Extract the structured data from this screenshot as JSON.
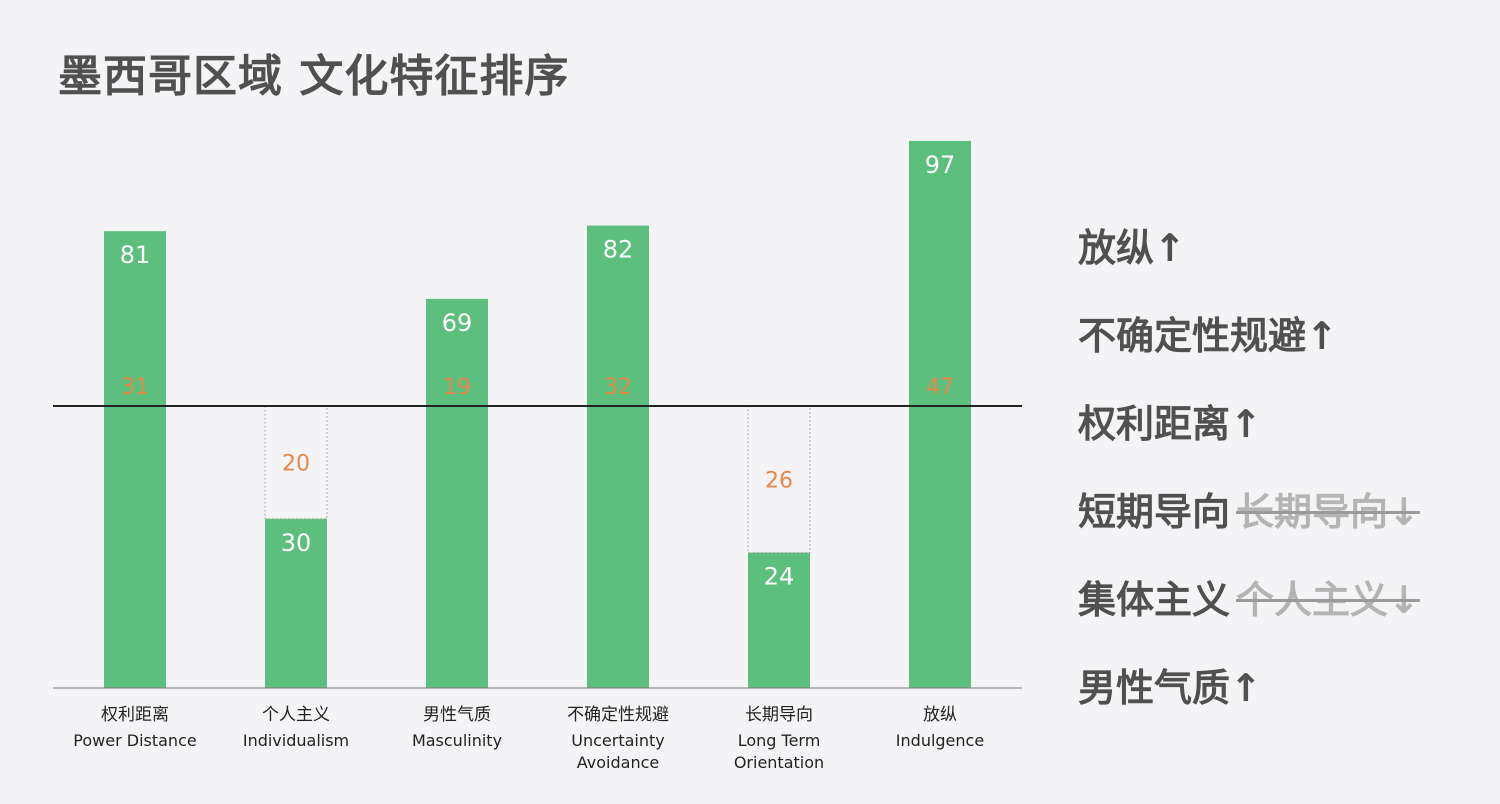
{
  "title": "墨西哥区域 文化特征排序",
  "chart_data": {
    "type": "bar",
    "categories": [
      {
        "zh": "权利距离",
        "en": [
          "Power Distance"
        ]
      },
      {
        "zh": "个人主义",
        "en": [
          "Individualism"
        ]
      },
      {
        "zh": "男性气质",
        "en": [
          "Masculinity"
        ]
      },
      {
        "zh": "不确定性规避",
        "en": [
          "Uncertainty",
          "Avoidance"
        ]
      },
      {
        "zh": "长期导向",
        "en": [
          "Long Term",
          "Orientation"
        ]
      },
      {
        "zh": "放纵",
        "en": [
          "Indulgence"
        ]
      }
    ],
    "values": [
      81,
      30,
      69,
      82,
      24,
      97
    ],
    "deviation_labels": [
      "31",
      "20",
      "19",
      "32",
      "26",
      "47"
    ],
    "value_labels": [
      "81",
      "30",
      "69",
      "82",
      "24",
      "97"
    ],
    "reference_line": 50,
    "ylim": [
      0,
      100
    ],
    "colors": {
      "bar": "#5dbf7d",
      "value_text": "#ffffff",
      "deviation_text": "#e8874a",
      "axis": "#222222",
      "gap_border": "#aaaaaa"
    }
  },
  "ranking": [
    {
      "label": "放纵↑",
      "alt": ""
    },
    {
      "label": "不确定性规避↑",
      "alt": ""
    },
    {
      "label": "权利距离↑",
      "alt": ""
    },
    {
      "label": "短期导向",
      "alt": "长期导向↓"
    },
    {
      "label": "集体主义",
      "alt": "个人主义↓"
    },
    {
      "label": "男性气质↑",
      "alt": ""
    }
  ]
}
